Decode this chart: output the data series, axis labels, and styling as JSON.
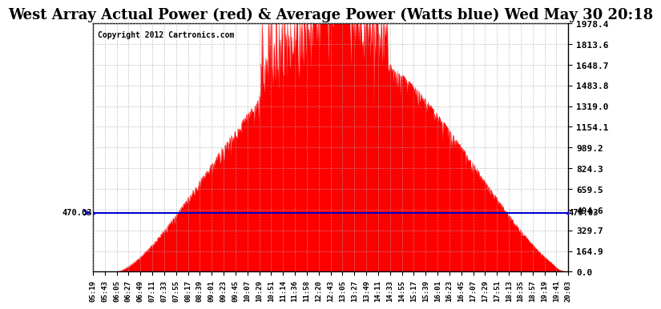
{
  "title": "West Array Actual Power (red) & Average Power (Watts blue) Wed May 30 20:18",
  "copyright": "Copyright 2012 Cartronics.com",
  "avg_power": 470.03,
  "ymax": 1978.4,
  "yticks": [
    0.0,
    164.9,
    329.7,
    494.6,
    659.5,
    824.3,
    989.2,
    1154.1,
    1319.0,
    1483.8,
    1648.7,
    1813.6,
    1978.4
  ],
  "xtick_labels": [
    "05:19",
    "05:43",
    "06:05",
    "06:27",
    "06:49",
    "07:11",
    "07:33",
    "07:55",
    "08:17",
    "08:39",
    "09:01",
    "09:23",
    "09:45",
    "10:07",
    "10:29",
    "10:51",
    "11:14",
    "11:36",
    "11:58",
    "12:20",
    "12:43",
    "13:05",
    "13:27",
    "13:49",
    "14:11",
    "14:33",
    "14:55",
    "15:17",
    "15:39",
    "16:01",
    "16:23",
    "16:45",
    "17:07",
    "17:29",
    "17:51",
    "18:13",
    "18:35",
    "18:57",
    "19:19",
    "19:41",
    "20:03"
  ],
  "background_color": "#ffffff",
  "grid_color": "#aaaaaa",
  "area_color": "#ff0000",
  "line_color": "#0000cc",
  "title_fontsize": 13,
  "annotation_fontsize": 9
}
